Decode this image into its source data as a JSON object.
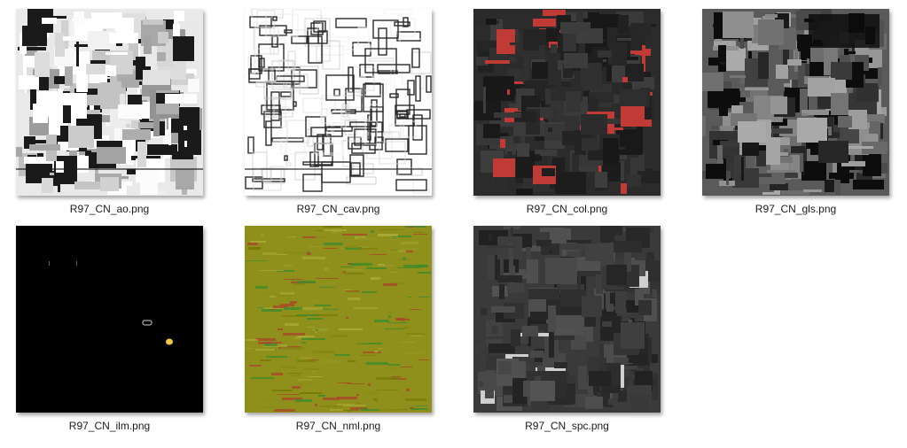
{
  "explorer": {
    "files": [
      {
        "name": "R97_CN_ao.png",
        "icon": "texture-thumbnail-ao",
        "base_color": "#e9e9e9",
        "accent_color": "#1a1a1a"
      },
      {
        "name": "R97_CN_cav.png",
        "icon": "texture-thumbnail-cav",
        "base_color": "#ffffff",
        "accent_color": "#2a2a2a"
      },
      {
        "name": "R97_CN_col.png",
        "icon": "texture-thumbnail-col",
        "base_color": "#2b2b2b",
        "accent_color": "#c23a35"
      },
      {
        "name": "R97_CN_gls.png",
        "icon": "texture-thumbnail-gls",
        "base_color": "#5a5a5a",
        "accent_color": "#0d0d0d"
      },
      {
        "name": "R97_CN_ilm.png",
        "icon": "texture-thumbnail-ilm",
        "base_color": "#000000",
        "accent_color": "#f2c744"
      },
      {
        "name": "R97_CN_nml.png",
        "icon": "texture-thumbnail-nml",
        "base_color": "#8f8f1c",
        "accent_color": "#3f8a2a"
      },
      {
        "name": "R97_CN_spc.png",
        "icon": "texture-thumbnail-spc",
        "base_color": "#3a3a3a",
        "accent_color": "#6e6e6e"
      }
    ]
  }
}
